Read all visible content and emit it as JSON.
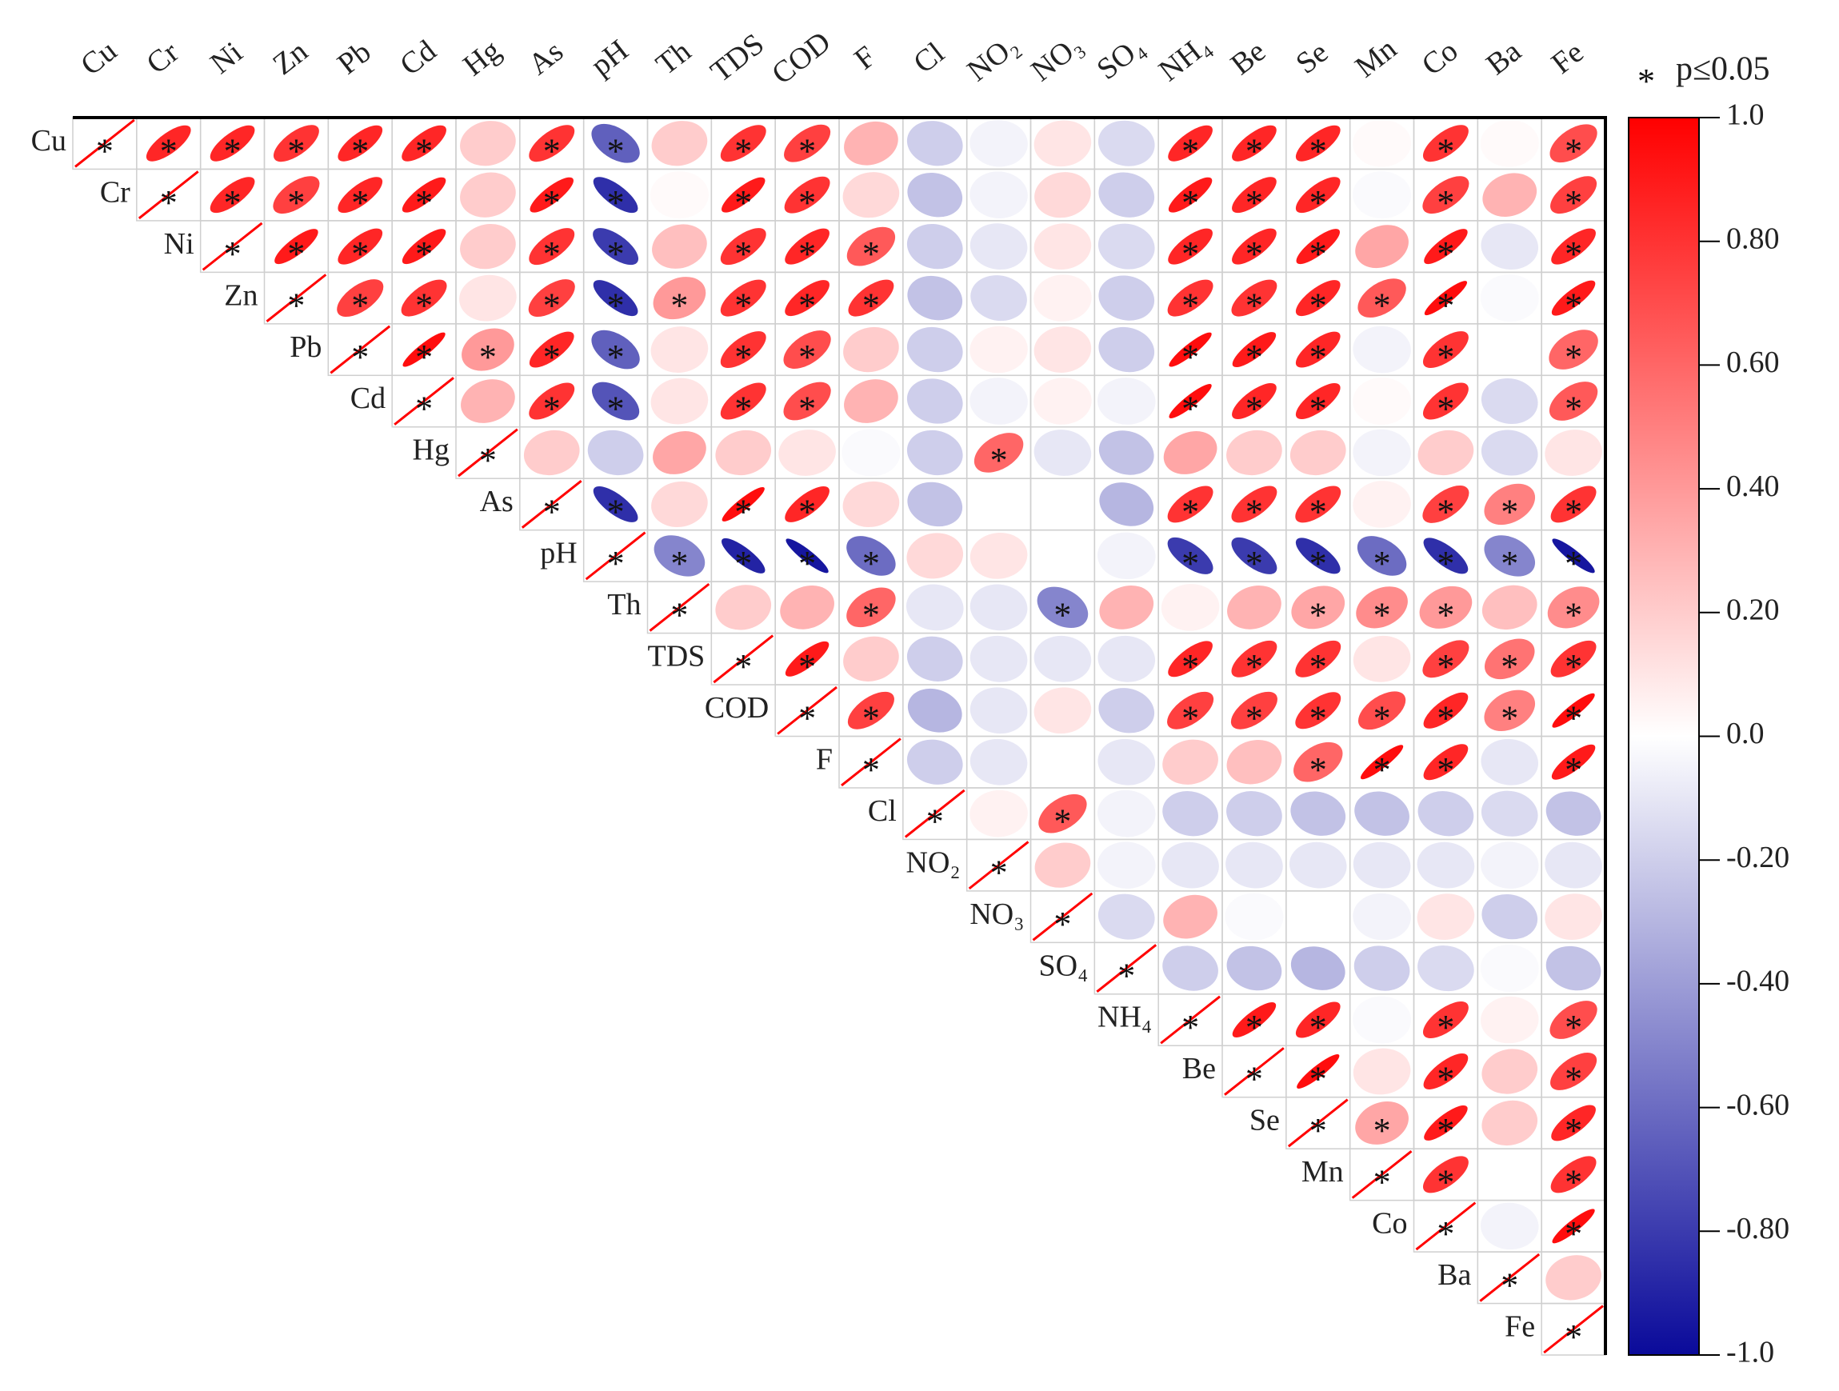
{
  "chart_data": {
    "type": "corrplot",
    "variables": [
      "Cu",
      "Cr",
      "Ni",
      "Zn",
      "Pb",
      "Cd",
      "Hg",
      "As",
      "pH",
      "Th",
      "TDS",
      "COD",
      "F",
      "Cl",
      "NO₂",
      "NO₃",
      "SO₄",
      "NH₄",
      "Be",
      "Se",
      "Mn",
      "Co",
      "Ba",
      "Fe"
    ],
    "sig_marker": "*",
    "sig_label": "p≤0.05",
    "clim": [
      -1,
      1
    ],
    "colors": [
      "#0a0a9a",
      "#ffffff",
      "#ff0000"
    ],
    "cticks": [
      {
        "value": 1,
        "label": "1.0"
      },
      {
        "value": 0.8,
        "label": "0.80"
      },
      {
        "value": 0.6,
        "label": "0.60"
      },
      {
        "value": 0.4,
        "label": "0.40"
      },
      {
        "value": 0.2,
        "label": "0.20"
      },
      {
        "value": 0,
        "label": "0.0"
      },
      {
        "value": -0.2,
        "label": "-0.20"
      },
      {
        "value": -0.4,
        "label": "-0.40"
      },
      {
        "value": -0.6,
        "label": "-0.60"
      },
      {
        "value": -0.8,
        "label": "-0.80"
      },
      {
        "value": -1,
        "label": "-1.0"
      }
    ],
    "matrix": [
      [
        1,
        0.85,
        0.85,
        0.8,
        0.85,
        0.85,
        0.2,
        0.8,
        -0.65,
        0.2,
        0.8,
        0.75,
        0.3,
        -0.2,
        -0.05,
        0.1,
        -0.15,
        0.85,
        0.85,
        0.85,
        0.02,
        0.8,
        0.02,
        0.7
      ],
      [
        null,
        1,
        0.85,
        0.75,
        0.85,
        0.9,
        0.2,
        0.9,
        -0.85,
        0.02,
        0.9,
        0.8,
        0.15,
        -0.25,
        -0.05,
        0.15,
        -0.2,
        0.9,
        0.85,
        0.85,
        -0.02,
        0.75,
        0.3,
        0.75
      ],
      [
        null,
        null,
        1,
        0.9,
        0.85,
        0.9,
        0.2,
        0.8,
        -0.8,
        0.25,
        0.8,
        0.85,
        0.65,
        -0.2,
        -0.1,
        0.1,
        -0.15,
        0.85,
        0.85,
        0.9,
        0.35,
        0.9,
        -0.1,
        0.85
      ],
      [
        null,
        null,
        null,
        1,
        0.75,
        0.8,
        0.1,
        0.75,
        -0.85,
        0.4,
        0.8,
        0.85,
        0.8,
        -0.25,
        -0.15,
        0.05,
        -0.2,
        0.8,
        0.8,
        0.85,
        0.65,
        0.95,
        -0.02,
        0.9
      ],
      [
        null,
        null,
        null,
        null,
        1,
        0.95,
        0.4,
        0.85,
        -0.65,
        0.1,
        0.8,
        0.7,
        0.2,
        -0.2,
        0.05,
        0.1,
        -0.2,
        0.95,
        0.9,
        0.85,
        -0.05,
        0.8,
        0,
        0.6
      ],
      [
        null,
        null,
        null,
        null,
        null,
        1,
        0.3,
        0.8,
        -0.7,
        0.1,
        0.8,
        0.7,
        0.3,
        -0.2,
        -0.05,
        0.05,
        -0.05,
        0.95,
        0.85,
        0.85,
        0.02,
        0.8,
        -0.15,
        0.65
      ],
      [
        null,
        null,
        null,
        null,
        null,
        null,
        1,
        0.2,
        -0.2,
        0.35,
        0.2,
        0.1,
        -0.02,
        -0.2,
        0.6,
        -0.1,
        -0.25,
        0.35,
        0.2,
        0.2,
        -0.05,
        0.2,
        -0.15,
        0.1
      ],
      [
        null,
        null,
        null,
        null,
        null,
        null,
        null,
        1,
        -0.85,
        0.15,
        0.95,
        0.85,
        0.15,
        -0.25,
        0,
        0,
        -0.3,
        0.8,
        0.8,
        0.8,
        0.05,
        0.75,
        0.5,
        0.8
      ],
      [
        null,
        null,
        null,
        null,
        null,
        null,
        null,
        null,
        1,
        -0.5,
        -0.9,
        -0.95,
        -0.6,
        0.15,
        0.1,
        0,
        -0.05,
        -0.8,
        -0.8,
        -0.85,
        -0.6,
        -0.85,
        -0.5,
        -0.95
      ],
      [
        null,
        null,
        null,
        null,
        null,
        null,
        null,
        null,
        null,
        1,
        0.2,
        0.3,
        0.6,
        -0.1,
        -0.1,
        -0.5,
        0.3,
        0.05,
        0.3,
        0.35,
        0.45,
        0.4,
        0.25,
        0.45
      ],
      [
        null,
        null,
        null,
        null,
        null,
        null,
        null,
        null,
        null,
        null,
        1,
        0.9,
        0.2,
        -0.2,
        -0.1,
        -0.1,
        -0.1,
        0.85,
        0.8,
        0.8,
        0.1,
        0.75,
        0.55,
        0.8
      ],
      [
        null,
        null,
        null,
        null,
        null,
        null,
        null,
        null,
        null,
        null,
        null,
        1,
        0.75,
        -0.3,
        -0.1,
        0.1,
        -0.2,
        0.75,
        0.75,
        0.8,
        0.7,
        0.85,
        0.5,
        0.95
      ],
      [
        null,
        null,
        null,
        null,
        null,
        null,
        null,
        null,
        null,
        null,
        null,
        null,
        1,
        -0.2,
        -0.1,
        0,
        -0.1,
        0.2,
        0.25,
        0.6,
        0.95,
        0.85,
        -0.1,
        0.9
      ],
      [
        null,
        null,
        null,
        null,
        null,
        null,
        null,
        null,
        null,
        null,
        null,
        null,
        null,
        1,
        0.05,
        0.65,
        -0.05,
        -0.2,
        -0.2,
        -0.25,
        -0.25,
        -0.2,
        -0.15,
        -0.25
      ],
      [
        null,
        null,
        null,
        null,
        null,
        null,
        null,
        null,
        null,
        null,
        null,
        null,
        null,
        null,
        1,
        0.2,
        -0.05,
        -0.1,
        -0.1,
        -0.1,
        -0.1,
        -0.1,
        -0.05,
        -0.1
      ],
      [
        null,
        null,
        null,
        null,
        null,
        null,
        null,
        null,
        null,
        null,
        null,
        null,
        null,
        null,
        null,
        1,
        -0.15,
        0.3,
        -0.02,
        0,
        -0.05,
        0.1,
        -0.2,
        0.1
      ],
      [
        null,
        null,
        null,
        null,
        null,
        null,
        null,
        null,
        null,
        null,
        null,
        null,
        null,
        null,
        null,
        null,
        1,
        -0.2,
        -0.25,
        -0.3,
        -0.2,
        -0.15,
        -0.02,
        -0.25
      ],
      [
        null,
        null,
        null,
        null,
        null,
        null,
        null,
        null,
        null,
        null,
        null,
        null,
        null,
        null,
        null,
        null,
        null,
        1,
        0.9,
        0.85,
        -0.02,
        0.8,
        0.05,
        0.7
      ],
      [
        null,
        null,
        null,
        null,
        null,
        null,
        null,
        null,
        null,
        null,
        null,
        null,
        null,
        null,
        null,
        null,
        null,
        null,
        1,
        0.95,
        0.1,
        0.85,
        0.2,
        0.75
      ],
      [
        null,
        null,
        null,
        null,
        null,
        null,
        null,
        null,
        null,
        null,
        null,
        null,
        null,
        null,
        null,
        null,
        null,
        null,
        null,
        1,
        0.35,
        0.9,
        0.2,
        0.85
      ],
      [
        null,
        null,
        null,
        null,
        null,
        null,
        null,
        null,
        null,
        null,
        null,
        null,
        null,
        null,
        null,
        null,
        null,
        null,
        null,
        null,
        1,
        0.8,
        0,
        0.8
      ],
      [
        null,
        null,
        null,
        null,
        null,
        null,
        null,
        null,
        null,
        null,
        null,
        null,
        null,
        null,
        null,
        null,
        null,
        null,
        null,
        null,
        null,
        1,
        -0.05,
        0.95
      ],
      [
        null,
        null,
        null,
        null,
        null,
        null,
        null,
        null,
        null,
        null,
        null,
        null,
        null,
        null,
        null,
        null,
        null,
        null,
        null,
        null,
        null,
        null,
        1,
        0.2
      ],
      [
        null,
        null,
        null,
        null,
        null,
        null,
        null,
        null,
        null,
        null,
        null,
        null,
        null,
        null,
        null,
        null,
        null,
        null,
        null,
        null,
        null,
        null,
        null,
        1
      ]
    ],
    "significant": [
      [
        true,
        true,
        true,
        true,
        true,
        true,
        false,
        true,
        true,
        false,
        true,
        true,
        false,
        false,
        false,
        false,
        false,
        true,
        true,
        true,
        false,
        true,
        false,
        true
      ],
      [
        null,
        true,
        true,
        true,
        true,
        true,
        false,
        true,
        true,
        false,
        true,
        true,
        false,
        false,
        false,
        false,
        false,
        true,
        true,
        true,
        false,
        true,
        false,
        true
      ],
      [
        null,
        null,
        true,
        true,
        true,
        true,
        false,
        true,
        true,
        false,
        true,
        true,
        true,
        false,
        false,
        false,
        false,
        true,
        true,
        true,
        false,
        true,
        false,
        true
      ],
      [
        null,
        null,
        null,
        true,
        true,
        true,
        false,
        true,
        true,
        true,
        true,
        true,
        true,
        false,
        false,
        false,
        false,
        true,
        true,
        true,
        true,
        true,
        false,
        true
      ],
      [
        null,
        null,
        null,
        null,
        true,
        true,
        true,
        true,
        true,
        false,
        true,
        true,
        false,
        false,
        false,
        false,
        false,
        true,
        true,
        true,
        false,
        true,
        false,
        true
      ],
      [
        null,
        null,
        null,
        null,
        null,
        true,
        false,
        true,
        true,
        false,
        true,
        true,
        false,
        false,
        false,
        false,
        false,
        true,
        true,
        true,
        false,
        true,
        false,
        true
      ],
      [
        null,
        null,
        null,
        null,
        null,
        null,
        true,
        false,
        false,
        false,
        false,
        false,
        false,
        false,
        true,
        false,
        false,
        false,
        false,
        false,
        false,
        false,
        false,
        false
      ],
      [
        null,
        null,
        null,
        null,
        null,
        null,
        null,
        true,
        true,
        false,
        true,
        true,
        false,
        false,
        false,
        false,
        false,
        true,
        true,
        true,
        false,
        true,
        true,
        true
      ],
      [
        null,
        null,
        null,
        null,
        null,
        null,
        null,
        null,
        true,
        true,
        true,
        true,
        true,
        false,
        false,
        false,
        false,
        true,
        true,
        true,
        true,
        true,
        true,
        true
      ],
      [
        null,
        null,
        null,
        null,
        null,
        null,
        null,
        null,
        null,
        true,
        false,
        false,
        true,
        false,
        false,
        true,
        false,
        false,
        false,
        true,
        true,
        true,
        false,
        true
      ],
      [
        null,
        null,
        null,
        null,
        null,
        null,
        null,
        null,
        null,
        null,
        true,
        true,
        false,
        false,
        false,
        false,
        false,
        true,
        true,
        true,
        false,
        true,
        true,
        true
      ],
      [
        null,
        null,
        null,
        null,
        null,
        null,
        null,
        null,
        null,
        null,
        null,
        true,
        true,
        false,
        false,
        false,
        false,
        true,
        true,
        true,
        true,
        true,
        true,
        true
      ],
      [
        null,
        null,
        null,
        null,
        null,
        null,
        null,
        null,
        null,
        null,
        null,
        null,
        true,
        false,
        false,
        false,
        false,
        false,
        false,
        true,
        true,
        true,
        false,
        true
      ],
      [
        null,
        null,
        null,
        null,
        null,
        null,
        null,
        null,
        null,
        null,
        null,
        null,
        null,
        true,
        false,
        true,
        false,
        false,
        false,
        false,
        false,
        false,
        false,
        false
      ],
      [
        null,
        null,
        null,
        null,
        null,
        null,
        null,
        null,
        null,
        null,
        null,
        null,
        null,
        null,
        true,
        false,
        false,
        false,
        false,
        false,
        false,
        false,
        false,
        false
      ],
      [
        null,
        null,
        null,
        null,
        null,
        null,
        null,
        null,
        null,
        null,
        null,
        null,
        null,
        null,
        null,
        true,
        false,
        false,
        false,
        false,
        false,
        false,
        false,
        false
      ],
      [
        null,
        null,
        null,
        null,
        null,
        null,
        null,
        null,
        null,
        null,
        null,
        null,
        null,
        null,
        null,
        null,
        true,
        false,
        false,
        false,
        false,
        false,
        false,
        false
      ],
      [
        null,
        null,
        null,
        null,
        null,
        null,
        null,
        null,
        null,
        null,
        null,
        null,
        null,
        null,
        null,
        null,
        null,
        true,
        true,
        true,
        false,
        true,
        false,
        true
      ],
      [
        null,
        null,
        null,
        null,
        null,
        null,
        null,
        null,
        null,
        null,
        null,
        null,
        null,
        null,
        null,
        null,
        null,
        null,
        true,
        true,
        false,
        true,
        false,
        true
      ],
      [
        null,
        null,
        null,
        null,
        null,
        null,
        null,
        null,
        null,
        null,
        null,
        null,
        null,
        null,
        null,
        null,
        null,
        null,
        null,
        true,
        true,
        true,
        false,
        true
      ],
      [
        null,
        null,
        null,
        null,
        null,
        null,
        null,
        null,
        null,
        null,
        null,
        null,
        null,
        null,
        null,
        null,
        null,
        null,
        null,
        null,
        true,
        true,
        false,
        true
      ],
      [
        null,
        null,
        null,
        null,
        null,
        null,
        null,
        null,
        null,
        null,
        null,
        null,
        null,
        null,
        null,
        null,
        null,
        null,
        null,
        null,
        null,
        true,
        false,
        true
      ],
      [
        null,
        null,
        null,
        null,
        null,
        null,
        null,
        null,
        null,
        null,
        null,
        null,
        null,
        null,
        null,
        null,
        null,
        null,
        null,
        null,
        null,
        null,
        true,
        false
      ],
      [
        null,
        null,
        null,
        null,
        null,
        null,
        null,
        null,
        null,
        null,
        null,
        null,
        null,
        null,
        null,
        null,
        null,
        null,
        null,
        null,
        null,
        null,
        null,
        true
      ]
    ]
  }
}
